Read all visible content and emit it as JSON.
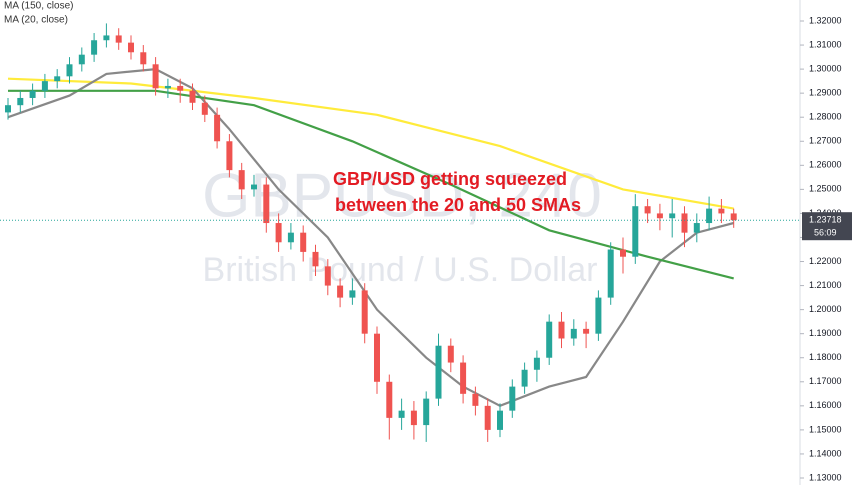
{
  "chart_data": {
    "type": "candlestick",
    "watermark": "GBPUSD, 240",
    "watermark_subtitle": "British Pound / U.S. Dollar",
    "legend": [
      "MA (150, close)",
      "MA (20, close)"
    ],
    "annotation": [
      "GBP/USD getting squeezed",
      "between the 20 and 50 SMAs"
    ],
    "up_color": "#26a69a",
    "down_color": "#ef5350",
    "open": [
      1.282,
      1.285,
      1.288,
      1.291,
      1.295,
      1.297,
      1.302,
      1.306,
      1.312,
      1.314,
      1.311,
      1.307,
      1.302,
      1.292,
      1.293,
      1.291,
      1.286,
      1.281,
      1.27,
      1.258,
      1.25,
      1.252,
      1.236,
      1.228,
      1.232,
      1.224,
      1.218,
      1.21,
      1.205,
      1.208,
      1.19,
      1.17,
      1.155,
      1.158,
      1.152,
      1.163,
      1.185,
      1.178,
      1.165,
      1.16,
      1.15,
      1.158,
      1.168,
      1.175,
      1.18,
      1.195,
      1.188,
      1.192,
      1.19,
      1.205,
      1.225,
      1.222,
      1.243,
      1.24,
      1.238,
      1.24,
      1.232,
      1.236,
      1.242,
      1.24
    ],
    "high": [
      1.288,
      1.291,
      1.294,
      1.298,
      1.3,
      1.305,
      1.309,
      1.315,
      1.319,
      1.317,
      1.314,
      1.31,
      1.305,
      1.296,
      1.296,
      1.294,
      1.289,
      1.284,
      1.273,
      1.261,
      1.256,
      1.255,
      1.24,
      1.236,
      1.235,
      1.227,
      1.221,
      1.213,
      1.213,
      1.211,
      1.193,
      1.173,
      1.163,
      1.162,
      1.166,
      1.19,
      1.188,
      1.181,
      1.168,
      1.163,
      1.161,
      1.171,
      1.178,
      1.183,
      1.198,
      1.199,
      1.196,
      1.195,
      1.208,
      1.228,
      1.23,
      1.248,
      1.246,
      1.244,
      1.246,
      1.243,
      1.24,
      1.247,
      1.246,
      1.242
    ],
    "low": [
      1.279,
      1.282,
      1.285,
      1.288,
      1.292,
      1.294,
      1.299,
      1.303,
      1.309,
      1.308,
      1.304,
      1.299,
      1.289,
      1.288,
      1.286,
      1.283,
      1.278,
      1.267,
      1.255,
      1.246,
      1.247,
      1.232,
      1.224,
      1.225,
      1.22,
      1.214,
      1.206,
      1.201,
      1.202,
      1.186,
      1.165,
      1.146,
      1.15,
      1.146,
      1.145,
      1.16,
      1.174,
      1.161,
      1.156,
      1.145,
      1.147,
      1.155,
      1.165,
      1.17,
      1.177,
      1.184,
      1.185,
      1.184,
      1.187,
      1.202,
      1.215,
      1.219,
      1.236,
      1.233,
      1.23,
      1.226,
      1.228,
      1.233,
      1.236,
      1.234
    ],
    "close": [
      1.285,
      1.288,
      1.291,
      1.295,
      1.297,
      1.302,
      1.306,
      1.312,
      1.314,
      1.311,
      1.307,
      1.302,
      1.292,
      1.293,
      1.291,
      1.286,
      1.281,
      1.27,
      1.258,
      1.25,
      1.252,
      1.236,
      1.228,
      1.232,
      1.224,
      1.218,
      1.21,
      1.205,
      1.208,
      1.19,
      1.17,
      1.155,
      1.158,
      1.152,
      1.163,
      1.185,
      1.178,
      1.165,
      1.16,
      1.15,
      1.158,
      1.168,
      1.175,
      1.18,
      1.195,
      1.188,
      1.192,
      1.19,
      1.205,
      1.225,
      1.222,
      1.243,
      1.24,
      1.238,
      1.24,
      1.232,
      1.236,
      1.242,
      1.24,
      1.23718
    ],
    "lines": [
      {
        "name": "MA (150, close)",
        "color": "#ffeb3b",
        "x": [
          0,
          10,
          20,
          30,
          40,
          50,
          59
        ],
        "values": [
          1.296,
          1.294,
          1.288,
          1.281,
          1.268,
          1.25,
          1.242
        ]
      },
      {
        "name": "MA (20, close)",
        "color": "#888888",
        "x": [
          0,
          5,
          8,
          12,
          15,
          18,
          22,
          26,
          30,
          34,
          37,
          40,
          44,
          47,
          50,
          53,
          56,
          59
        ],
        "values": [
          1.28,
          1.289,
          1.298,
          1.3,
          1.292,
          1.275,
          1.25,
          1.23,
          1.2,
          1.18,
          1.168,
          1.16,
          1.168,
          1.172,
          1.195,
          1.22,
          1.232,
          1.236
        ]
      },
      {
        "color": "#43a047",
        "x": [
          0,
          12,
          20,
          28,
          36,
          44,
          52,
          59
        ],
        "values": [
          1.291,
          1.291,
          1.285,
          1.27,
          1.252,
          1.233,
          1.222,
          1.213
        ]
      }
    ],
    "last_price": {
      "value": 1.23718,
      "label": "1.23718"
    },
    "countdown": "56:09",
    "ylim": [
      1.1315,
      1.32
    ],
    "yticks": [
      {
        "value": 1.13,
        "label": "1.13000"
      },
      {
        "value": 1.14,
        "label": "1.14000"
      },
      {
        "value": 1.15,
        "label": "1.15000"
      },
      {
        "value": 1.16,
        "label": "1.16000"
      },
      {
        "value": 1.17,
        "label": "1.17000"
      },
      {
        "value": 1.18,
        "label": "1.18000"
      },
      {
        "value": 1.19,
        "label": "1.19000"
      },
      {
        "value": 1.2,
        "label": "1.20000"
      },
      {
        "value": 1.21,
        "label": "1.21000"
      },
      {
        "value": 1.22,
        "label": "1.22000"
      },
      {
        "value": 1.23,
        "label": "1.23000"
      },
      {
        "value": 1.24,
        "label": "1.24000"
      },
      {
        "value": 1.25,
        "label": "1.25000"
      },
      {
        "value": 1.26,
        "label": "1.26000"
      },
      {
        "value": 1.27,
        "label": "1.27000"
      },
      {
        "value": 1.28,
        "label": "1.28000"
      },
      {
        "value": 1.29,
        "label": "1.29000"
      },
      {
        "value": 1.3,
        "label": "1.30000"
      },
      {
        "value": 1.31,
        "label": "1.31000"
      },
      {
        "value": 1.32,
        "label": "1.32000"
      }
    ]
  }
}
